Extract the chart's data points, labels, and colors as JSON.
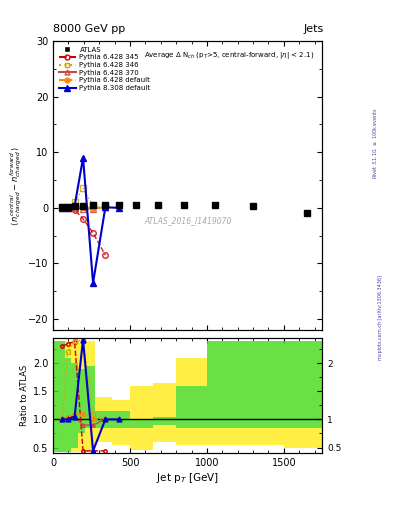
{
  "title_top": "8000 GeV pp",
  "title_right": "Jets",
  "xlabel": "Jet p$_T$ [GeV]",
  "ylabel_ratio": "Ratio to ATLAS",
  "annotation_main": "Average $\\Delta$ N$_{ch}$ (p$_T$>5, central-forward, |$\\eta$| < 2.1)",
  "watermark": "ATLAS_2016_I1419070",
  "rivet_text": "Rivet 3.1.10, $\\geq$ 100k events",
  "mcplots_text": "mcplots.cern.ch [arXiv:1306.3436]",
  "main_ylim": [
    -22,
    30
  ],
  "ratio_ylim": [
    0.4,
    2.45
  ],
  "xlim": [
    0,
    1750
  ],
  "atlas_x": [
    60,
    95,
    140,
    195,
    260,
    340,
    430,
    540,
    680,
    850,
    1050,
    1300,
    1650
  ],
  "atlas_y": [
    0.1,
    0.1,
    0.3,
    0.3,
    0.5,
    0.5,
    0.5,
    0.5,
    0.5,
    0.5,
    0.5,
    0.3,
    -1.0
  ],
  "py6_345_x": [
    60,
    95,
    140,
    195,
    260,
    340
  ],
  "py6_345_y": [
    0.1,
    0.1,
    -0.3,
    -2.0,
    -4.5,
    -8.5
  ],
  "py6_346_x": [
    60,
    95,
    140,
    195,
    260,
    340
  ],
  "py6_346_y": [
    0.1,
    0.2,
    1.0,
    3.5,
    0.3,
    0.1
  ],
  "py6_370_x": [
    60,
    95,
    140,
    195,
    260,
    340
  ],
  "py6_370_y": [
    0.05,
    0.05,
    0.0,
    -0.2,
    -0.2,
    0.1
  ],
  "py6_def_x": [
    60,
    95,
    140,
    195,
    260,
    340
  ],
  "py6_def_y": [
    0.05,
    0.05,
    0.1,
    0.2,
    0.0,
    0.1
  ],
  "py8_def_x": [
    60,
    95,
    140,
    195,
    260,
    340,
    430
  ],
  "py8_def_y": [
    0.05,
    0.05,
    0.3,
    9.0,
    -13.5,
    0.1,
    0.0
  ],
  "ratio_bin_edges": [
    0,
    75,
    115,
    160,
    210,
    270,
    380,
    500,
    650,
    800,
    1000,
    1250,
    1500,
    1750
  ],
  "ratio_green_hi": [
    2.4,
    2.1,
    2.0,
    1.9,
    1.95,
    1.15,
    1.15,
    1.0,
    1.05,
    1.6,
    2.4,
    2.4,
    2.4
  ],
  "ratio_green_lo": [
    0.42,
    0.42,
    0.5,
    0.75,
    0.85,
    0.85,
    0.85,
    0.85,
    0.9,
    0.85,
    0.85,
    0.85,
    0.85
  ],
  "ratio_yellow_hi": [
    2.4,
    2.4,
    2.4,
    2.4,
    2.4,
    1.4,
    1.35,
    1.6,
    1.65,
    2.1,
    2.4,
    2.4,
    2.4
  ],
  "ratio_yellow_lo": [
    0.42,
    0.42,
    0.42,
    0.42,
    0.42,
    0.6,
    0.55,
    0.45,
    0.6,
    0.55,
    0.55,
    0.55,
    0.5
  ],
  "py6_345_ratio_x": [
    60,
    95,
    140,
    195,
    260,
    340
  ],
  "py6_345_ratio": [
    2.3,
    2.35,
    2.38,
    0.44,
    0.44,
    0.44
  ],
  "py6_346_ratio_x": [
    60,
    95,
    140,
    195,
    260,
    340
  ],
  "py6_346_ratio": [
    1.0,
    2.2,
    2.4,
    2.4,
    1.1,
    1.0
  ],
  "py6_370_ratio_x": [
    60,
    95,
    140,
    195,
    260,
    340
  ],
  "py6_370_ratio": [
    1.0,
    1.05,
    1.05,
    0.9,
    0.9,
    1.0
  ],
  "py6_def_ratio_x": [
    60,
    95,
    140,
    195,
    260,
    340
  ],
  "py6_def_ratio": [
    1.0,
    1.05,
    1.1,
    1.1,
    1.0,
    1.0
  ],
  "py8_def_ratio_x": [
    60,
    95,
    140,
    195,
    260,
    340,
    430
  ],
  "py8_def_ratio": [
    1.0,
    1.0,
    1.05,
    2.42,
    0.44,
    1.0,
    1.0
  ],
  "color_py6_345": "#cc0000",
  "color_py6_346": "#ccaa00",
  "color_py6_370": "#cc4444",
  "color_py6_def": "#ff8800",
  "color_py8_def": "#0000cc",
  "color_atlas": "#000000",
  "color_green": "#44dd44",
  "color_yellow": "#ffee44",
  "background_color": "#ffffff"
}
